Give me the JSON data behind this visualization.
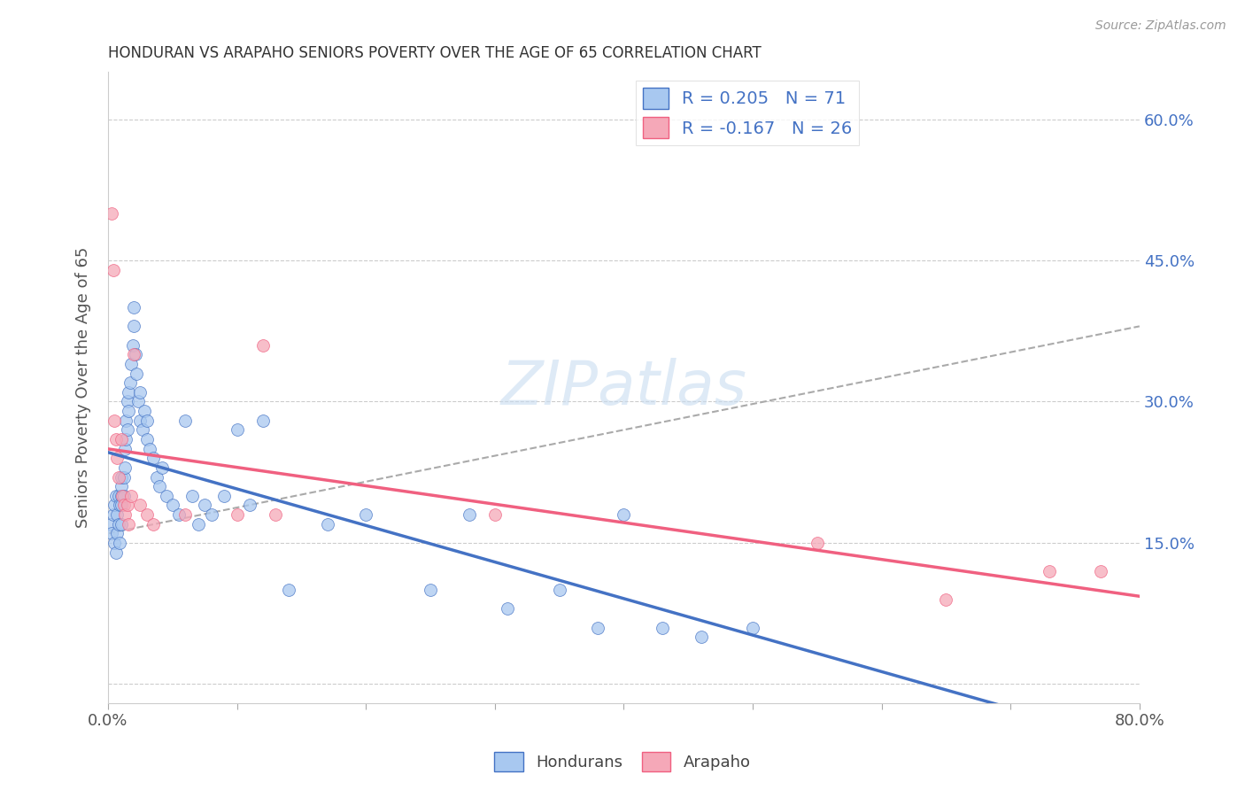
{
  "title": "HONDURAN VS ARAPAHO SENIORS POVERTY OVER THE AGE OF 65 CORRELATION CHART",
  "source": "Source: ZipAtlas.com",
  "ylabel": "Seniors Poverty Over the Age of 65",
  "y_ticks": [
    0.0,
    0.15,
    0.3,
    0.45,
    0.6
  ],
  "y_tick_labels": [
    "",
    "15.0%",
    "30.0%",
    "45.0%",
    "60.0%"
  ],
  "xlim": [
    0.0,
    0.8
  ],
  "ylim": [
    -0.02,
    0.65
  ],
  "honduran_color": "#A8C8F0",
  "arapaho_color": "#F5A8B8",
  "honduran_line_color": "#4472C4",
  "arapaho_line_color": "#F06080",
  "dashed_line_color": "#AAAAAA",
  "honduran_R": 0.205,
  "honduran_N": 71,
  "arapaho_R": -0.167,
  "arapaho_N": 26,
  "honduran_x": [
    0.002,
    0.003,
    0.004,
    0.005,
    0.005,
    0.006,
    0.006,
    0.007,
    0.007,
    0.008,
    0.008,
    0.009,
    0.009,
    0.01,
    0.01,
    0.01,
    0.01,
    0.01,
    0.012,
    0.012,
    0.013,
    0.013,
    0.014,
    0.014,
    0.015,
    0.015,
    0.016,
    0.016,
    0.017,
    0.018,
    0.019,
    0.02,
    0.02,
    0.021,
    0.022,
    0.023,
    0.025,
    0.025,
    0.027,
    0.028,
    0.03,
    0.03,
    0.032,
    0.035,
    0.038,
    0.04,
    0.042,
    0.045,
    0.05,
    0.055,
    0.06,
    0.065,
    0.07,
    0.075,
    0.08,
    0.09,
    0.1,
    0.11,
    0.12,
    0.14,
    0.17,
    0.2,
    0.25,
    0.28,
    0.31,
    0.35,
    0.38,
    0.4,
    0.43,
    0.46,
    0.5
  ],
  "honduran_y": [
    0.17,
    0.16,
    0.18,
    0.19,
    0.15,
    0.2,
    0.14,
    0.18,
    0.16,
    0.17,
    0.2,
    0.15,
    0.19,
    0.2,
    0.21,
    0.22,
    0.19,
    0.17,
    0.22,
    0.2,
    0.25,
    0.23,
    0.26,
    0.28,
    0.3,
    0.27,
    0.29,
    0.31,
    0.32,
    0.34,
    0.36,
    0.38,
    0.4,
    0.35,
    0.33,
    0.3,
    0.28,
    0.31,
    0.27,
    0.29,
    0.26,
    0.28,
    0.25,
    0.24,
    0.22,
    0.21,
    0.23,
    0.2,
    0.19,
    0.18,
    0.28,
    0.2,
    0.17,
    0.19,
    0.18,
    0.2,
    0.27,
    0.19,
    0.28,
    0.1,
    0.17,
    0.18,
    0.1,
    0.18,
    0.08,
    0.1,
    0.06,
    0.18,
    0.06,
    0.05,
    0.06
  ],
  "arapaho_x": [
    0.003,
    0.004,
    0.005,
    0.006,
    0.007,
    0.008,
    0.01,
    0.011,
    0.012,
    0.013,
    0.015,
    0.016,
    0.018,
    0.02,
    0.025,
    0.03,
    0.035,
    0.06,
    0.1,
    0.12,
    0.13,
    0.3,
    0.55,
    0.65,
    0.73,
    0.77
  ],
  "arapaho_y": [
    0.5,
    0.44,
    0.28,
    0.26,
    0.24,
    0.22,
    0.26,
    0.2,
    0.19,
    0.18,
    0.19,
    0.17,
    0.2,
    0.35,
    0.19,
    0.18,
    0.17,
    0.18,
    0.18,
    0.36,
    0.18,
    0.18,
    0.15,
    0.09,
    0.12,
    0.12
  ]
}
